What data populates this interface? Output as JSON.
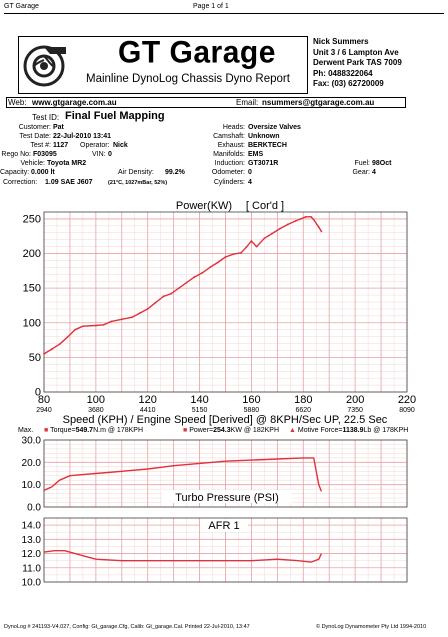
{
  "page": {
    "app_name": "GT Garage",
    "page_label": "Page 1 of 1"
  },
  "header": {
    "brand": "GT Garage",
    "subtitle": "Mainline DynoLog Chassis Dyno Report",
    "contact": [
      "Nick Summers",
      "Unit 3 / 6 Lampton Ave",
      "Derwent Park TAS 7009",
      "Ph: 0488322064",
      "Fax: (03) 62720009"
    ]
  },
  "web": {
    "label": "Web:",
    "value": "www.gtgarage.com.au",
    "email_label": "Email:",
    "email": "nsummers@gtgarage.com.au"
  },
  "test": {
    "id_label": "Test ID:",
    "id_value": "Final Fuel Mapping"
  },
  "details": {
    "customer_label": "Customer:",
    "customer": "Pat",
    "date_label": "Test Date:",
    "date": "22-Jul-2010 13:41",
    "testno_label": "Test #:",
    "testno": "1127",
    "operator_label": "Operator:",
    "operator": "Nick",
    "rego_label": "Rego No:",
    "rego": "F03095",
    "vin_label": "VIN:",
    "vin": "0",
    "vehicle_label": "Vehicle:",
    "vehicle": "Toyota MR2",
    "capacity_label": "Capacity:",
    "capacity": "0.000 lt",
    "airdensity_label": "Air Density:",
    "airdensity": "99.2%",
    "correction_label": "Correction:",
    "correction": "1.09 SAE J607",
    "conditions": "(21°C, 1027mBar, 52%)",
    "heads_label": "Heads:",
    "heads": "Oversize Valves",
    "camshaft_label": "Camshaft:",
    "camshaft": "Unknown",
    "exhaust_label": "Exhaust:",
    "exhaust": "BERKTECH",
    "manifolds_label": "Manifolds:",
    "manifolds": "EMS",
    "induction_label": "Induction:",
    "induction": "GT3071R",
    "odometer_label": "Odometer:",
    "odometer": "0",
    "cylinders_label": "Cylinders:",
    "cylinders": "4",
    "fuel_label": "Fuel:",
    "fuel": "98Oct",
    "gear_label": "Gear:",
    "gear": "4"
  },
  "max": {
    "label": "Max.",
    "torque_label": "Torque=",
    "torque": "549.7",
    "torque_unit": "N.m @ 178KPH",
    "power_label": "Power=",
    "power": "254.3",
    "power_unit": "KW @ 182KPH",
    "force_label": "Motive Force=",
    "force": "1138.9",
    "force_unit": "Lb @ 178KPH"
  },
  "footer": {
    "left": "DynoLog # 241193-V4.027, Config: Gt_garage.Cfg, Calib: Gt_garage.Cal. Printed 22-Jul-2010, 13:47",
    "right": "© DynoLog Dynamometer Pty Ltd 1994-2010"
  },
  "colors": {
    "trace": "#e0323c",
    "grid": "#e8a3a3",
    "grid_fine": "#f4d6d6",
    "axis": "#444444"
  },
  "chart_data": [
    {
      "type": "line",
      "title": "Power(KW)",
      "subtitle": "[ Cor'd ]",
      "xlabel": "Speed (KPH) / Engine Speed [Derived] @ 8KPH/Sec UP, 22.5 Sec",
      "x_ticks": [
        80,
        100,
        120,
        140,
        160,
        180,
        200,
        220
      ],
      "x_ticks2": [
        "2940",
        "3680",
        "4410",
        "5150",
        "5880",
        "6620",
        "7350",
        "8090"
      ],
      "y_ticks": [
        0,
        50,
        100,
        150,
        200,
        250
      ],
      "xlim": [
        80,
        220
      ],
      "ylim": [
        0,
        260
      ],
      "series": [
        {
          "values_xy": [
            [
              80,
              55
            ],
            [
              83,
              62
            ],
            [
              86,
              69
            ],
            [
              89,
              79
            ],
            [
              92,
              90
            ],
            [
              95,
              95
            ],
            [
              100,
              96
            ],
            [
              103,
              97
            ],
            [
              106,
              102
            ],
            [
              110,
              105
            ],
            [
              114,
              108
            ],
            [
              117,
              114
            ],
            [
              120,
              120
            ],
            [
              123,
              129
            ],
            [
              126,
              138
            ],
            [
              129,
              142
            ],
            [
              132,
              150
            ],
            [
              135,
              158
            ],
            [
              138,
              166
            ],
            [
              141,
              172
            ],
            [
              144,
              180
            ],
            [
              147,
              187
            ],
            [
              150,
              195
            ],
            [
              153,
              199
            ],
            [
              156,
              201
            ],
            [
              158,
              209
            ],
            [
              160,
              218
            ],
            [
              162,
              210
            ],
            [
              165,
              222
            ],
            [
              168,
              229
            ],
            [
              171,
              236
            ],
            [
              174,
              242
            ],
            [
              177,
              247
            ],
            [
              179,
              250
            ],
            [
              181,
              253
            ],
            [
              183,
              253
            ],
            [
              184,
              249
            ],
            [
              186,
              238
            ],
            [
              187,
              232
            ]
          ]
        }
      ]
    },
    {
      "type": "line",
      "title": "Turbo Pressure (PSI)",
      "y_ticks": [
        0.0,
        10.0,
        20.0,
        30.0
      ],
      "ylim": [
        0,
        30
      ],
      "xlim": [
        80,
        220
      ],
      "series": [
        {
          "values_xy": [
            [
              80,
              7.5
            ],
            [
              83,
              9
            ],
            [
              86,
              12
            ],
            [
              90,
              14
            ],
            [
              95,
              14.5
            ],
            [
              100,
              15
            ],
            [
              110,
              16
            ],
            [
              120,
              17
            ],
            [
              130,
              18.5
            ],
            [
              140,
              19.5
            ],
            [
              150,
              20.5
            ],
            [
              160,
              21
            ],
            [
              170,
              21.5
            ],
            [
              180,
              22
            ],
            [
              184,
              22
            ],
            [
              186,
              10
            ],
            [
              187,
              7
            ]
          ]
        }
      ]
    },
    {
      "type": "line",
      "title": "AFR 1",
      "y_ticks": [
        10.0,
        11.0,
        12.0,
        13.0,
        14.0
      ],
      "ylim": [
        10,
        14.5
      ],
      "xlim": [
        80,
        220
      ],
      "series": [
        {
          "values_xy": [
            [
              80,
              12.1
            ],
            [
              84,
              12.2
            ],
            [
              88,
              12.2
            ],
            [
              92,
              12.0
            ],
            [
              96,
              11.8
            ],
            [
              100,
              11.6
            ],
            [
              110,
              11.5
            ],
            [
              120,
              11.5
            ],
            [
              130,
              11.5
            ],
            [
              140,
              11.5
            ],
            [
              150,
              11.5
            ],
            [
              160,
              11.5
            ],
            [
              170,
              11.6
            ],
            [
              178,
              11.5
            ],
            [
              183,
              11.4
            ],
            [
              186,
              11.6
            ],
            [
              187,
              12.0
            ]
          ]
        }
      ]
    }
  ]
}
